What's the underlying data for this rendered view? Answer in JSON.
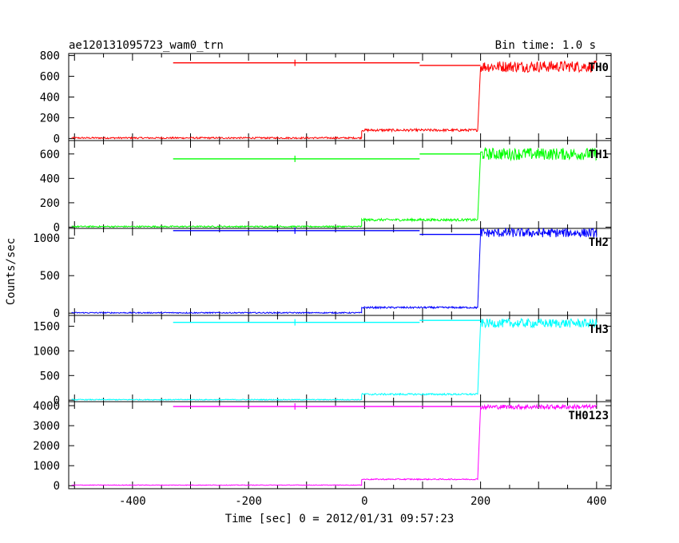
{
  "header": {
    "title": "ae120131095723_wam0_trn",
    "bin_time": "Bin time: 1.0 s"
  },
  "chart_data": {
    "type": "line",
    "xlabel": "Time [sec] 0 = 2012/01/31 09:57:23",
    "ylabel": "Counts/sec",
    "xlim": [
      -510,
      425
    ],
    "x_ticks": [
      -400,
      -200,
      0,
      200,
      400
    ],
    "grid": false,
    "panels": [
      {
        "name": "TH0",
        "color": "#ff0000",
        "ylim": [
          -20,
          820
        ],
        "y_ticks": [
          0,
          200,
          400,
          600,
          800
        ],
        "segments": [
          {
            "x": [
              -505,
              -5
            ],
            "y": [
              5,
              5
            ]
          },
          {
            "x": [
              -5,
              195
            ],
            "y": [
              80,
              80
            ]
          },
          {
            "x": [
              195,
              200
            ],
            "y": [
              85,
              695
            ]
          },
          {
            "x": [
              200,
              400
            ],
            "y": [
              695,
              695
            ]
          }
        ],
        "bg_segments": [
          {
            "x": [
              -330,
              95
            ],
            "y": [
              730,
              730
            ]
          },
          {
            "x": [
              95,
              200
            ],
            "y": [
              705,
              705
            ]
          }
        ],
        "noise_amp": [
          8,
          12,
          55
        ]
      },
      {
        "name": "TH1",
        "color": "#00ff00",
        "ylim": [
          -10,
          710
        ],
        "y_ticks": [
          0,
          200,
          400,
          600
        ],
        "segments": [
          {
            "x": [
              -505,
              -5
            ],
            "y": [
              5,
              5
            ]
          },
          {
            "x": [
              -5,
              195
            ],
            "y": [
              60,
              60
            ]
          },
          {
            "x": [
              195,
              200
            ],
            "y": [
              65,
              600
            ]
          },
          {
            "x": [
              200,
              400
            ],
            "y": [
              600,
              600
            ]
          }
        ],
        "bg_segments": [
          {
            "x": [
              -330,
              95
            ],
            "y": [
              560,
              560
            ]
          },
          {
            "x": [
              95,
              200
            ],
            "y": [
              600,
              600
            ]
          }
        ],
        "noise_amp": [
          6,
          10,
          50
        ]
      },
      {
        "name": "TH2",
        "color": "#0000ff",
        "ylim": [
          -30,
          1130
        ],
        "y_ticks": [
          0,
          500,
          1000
        ],
        "segments": [
          {
            "x": [
              -505,
              -5
            ],
            "y": [
              5,
              5
            ]
          },
          {
            "x": [
              -5,
              195
            ],
            "y": [
              75,
              75
            ]
          },
          {
            "x": [
              195,
              200
            ],
            "y": [
              80,
              1070
            ]
          },
          {
            "x": [
              200,
              400
            ],
            "y": [
              1070,
              1070
            ]
          }
        ],
        "bg_segments": [
          {
            "x": [
              -330,
              95
            ],
            "y": [
              1100,
              1100
            ]
          },
          {
            "x": [
              95,
              200
            ],
            "y": [
              1050,
              1050
            ]
          }
        ],
        "noise_amp": [
          8,
          12,
          60
        ]
      },
      {
        "name": "TH3",
        "color": "#00ffff",
        "ylim": [
          -30,
          1720
        ],
        "y_ticks": [
          0,
          500,
          1000,
          1500
        ],
        "segments": [
          {
            "x": [
              -505,
              -5
            ],
            "y": [
              10,
              10
            ]
          },
          {
            "x": [
              -5,
              195
            ],
            "y": [
              120,
              120
            ]
          },
          {
            "x": [
              195,
              200
            ],
            "y": [
              130,
              1560
            ]
          },
          {
            "x": [
              200,
              400
            ],
            "y": [
              1560,
              1560
            ]
          }
        ],
        "bg_segments": [
          {
            "x": [
              -330,
              95
            ],
            "y": [
              1580,
              1580
            ]
          },
          {
            "x": [
              95,
              200
            ],
            "y": [
              1620,
              1620
            ]
          }
        ],
        "noise_amp": [
          10,
          18,
          90
        ]
      },
      {
        "name": "TH0123",
        "color": "#ff00ff",
        "ylim": [
          -150,
          4200
        ],
        "y_ticks": [
          0,
          1000,
          2000,
          3000,
          4000
        ],
        "segments": [
          {
            "x": [
              -505,
              -5
            ],
            "y": [
              30,
              30
            ]
          },
          {
            "x": [
              -5,
              195
            ],
            "y": [
              320,
              320
            ]
          },
          {
            "x": [
              195,
              200
            ],
            "y": [
              340,
              3940
            ]
          },
          {
            "x": [
              200,
              400
            ],
            "y": [
              3940,
              3940
            ]
          }
        ],
        "bg_segments": [
          {
            "x": [
              -330,
              95
            ],
            "y": [
              3960,
              3960
            ]
          },
          {
            "x": [
              95,
              200
            ],
            "y": [
              3960,
              3960
            ]
          }
        ],
        "noise_amp": [
          15,
          30,
          110
        ]
      }
    ]
  }
}
